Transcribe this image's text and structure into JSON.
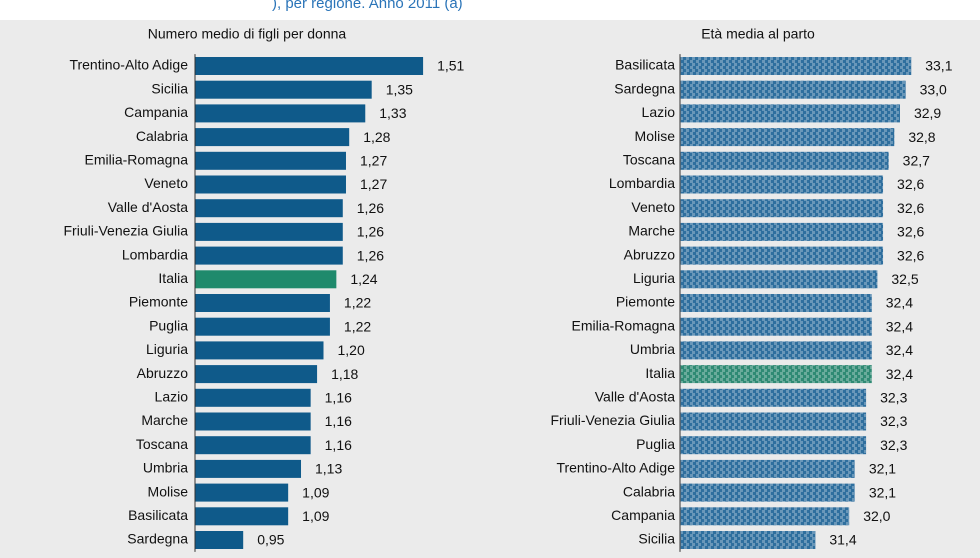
{
  "header": {
    "title": "), per regione. Anno 2011 (a)"
  },
  "chart_data": [
    {
      "type": "bar",
      "orientation": "horizontal",
      "title": "Numero medio di figli per donna",
      "categories": [
        "Trentino-Alto Adige",
        "Sicilia",
        "Campania",
        "Calabria",
        "Emilia-Romagna",
        "Veneto",
        "Valle d'Aosta",
        "Friuli-Venezia Giulia",
        "Lombardia",
        "Italia",
        "Piemonte",
        "Puglia",
        "Liguria",
        "Abruzzo",
        "Lazio",
        "Marche",
        "Toscana",
        "Umbria",
        "Molise",
        "Basilicata",
        "Sardegna"
      ],
      "values": [
        1.51,
        1.35,
        1.33,
        1.28,
        1.27,
        1.27,
        1.26,
        1.26,
        1.26,
        1.24,
        1.22,
        1.22,
        1.2,
        1.18,
        1.16,
        1.16,
        1.16,
        1.13,
        1.09,
        1.09,
        0.95
      ],
      "value_labels": [
        "1,51",
        "1,35",
        "1,33",
        "1,28",
        "1,27",
        "1,27",
        "1,26",
        "1,26",
        "1,26",
        "1,24",
        "1,22",
        "1,22",
        "1,20",
        "1,18",
        "1,16",
        "1,16",
        "1,16",
        "1,13",
        "1,09",
        "1,09",
        "0,95"
      ],
      "colors": [
        "#0f5a8a",
        "#0f5a8a",
        "#0f5a8a",
        "#0f5a8a",
        "#0f5a8a",
        "#0f5a8a",
        "#0f5a8a",
        "#0f5a8a",
        "#0f5a8a",
        "#1f8a6c",
        "#0f5a8a",
        "#0f5a8a",
        "#0f5a8a",
        "#0f5a8a",
        "#0f5a8a",
        "#0f5a8a",
        "#0f5a8a",
        "#0f5a8a",
        "#0f5a8a",
        "#0f5a8a",
        "#0f5a8a"
      ],
      "texture": false,
      "xlim": [
        0.8,
        1.6
      ]
    },
    {
      "type": "bar",
      "orientation": "horizontal",
      "title": "Età media al parto",
      "categories": [
        "Basilicata",
        "Sardegna",
        "Lazio",
        "Molise",
        "Toscana",
        "Lombardia",
        "Veneto",
        "Marche",
        "Abruzzo",
        "Liguria",
        "Piemonte",
        "Emilia-Romagna",
        "Umbria",
        "Italia",
        "Valle d'Aosta",
        "Friuli-Venezia Giulia",
        "Puglia",
        "Trentino-Alto Adige",
        "Calabria",
        "Campania",
        "Sicilia"
      ],
      "values": [
        33.1,
        33.0,
        32.9,
        32.8,
        32.7,
        32.6,
        32.6,
        32.6,
        32.6,
        32.5,
        32.4,
        32.4,
        32.4,
        32.4,
        32.3,
        32.3,
        32.3,
        32.1,
        32.1,
        32.0,
        31.4
      ],
      "value_labels": [
        "33,1",
        "33,0",
        "32,9",
        "32,8",
        "32,7",
        "32,6",
        "32,6",
        "32,6",
        "32,6",
        "32,5",
        "32,4",
        "32,4",
        "32,4",
        "32,4",
        "32,3",
        "32,3",
        "32,3",
        "32,1",
        "32,1",
        "32,0",
        "31,4"
      ],
      "colors": [
        "#2f6f9e",
        "#2f6f9e",
        "#2f6f9e",
        "#2f6f9e",
        "#2f6f9e",
        "#2f6f9e",
        "#2f6f9e",
        "#2f6f9e",
        "#2f6f9e",
        "#2f6f9e",
        "#2f6f9e",
        "#2f6f9e",
        "#2f6f9e",
        "#2f8a74",
        "#2f6f9e",
        "#2f6f9e",
        "#2f6f9e",
        "#2f6f9e",
        "#2f6f9e",
        "#2f6f9e",
        "#2f6f9e"
      ],
      "texture": true,
      "xlim": [
        29,
        34
      ]
    }
  ]
}
